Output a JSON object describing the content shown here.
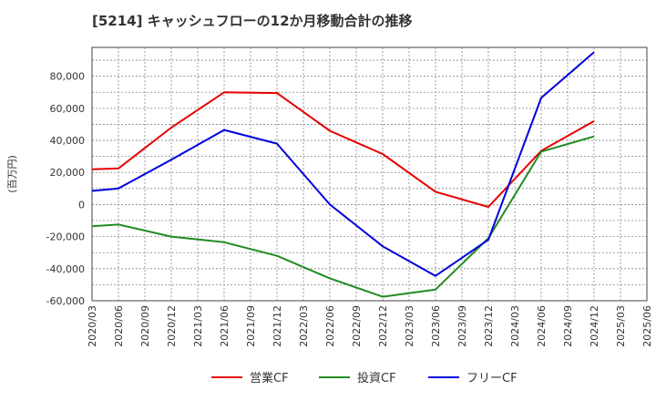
{
  "chart_data": {
    "type": "line",
    "title": "[5214]  キャッシュフローの12か月移動合計の推移",
    "ylabel": "(百万円)",
    "xlabel": "",
    "ylim": [
      -60000,
      98000
    ],
    "yticks": [
      80000,
      60000,
      40000,
      20000,
      0,
      -20000,
      -40000,
      -60000
    ],
    "ytick_labels": [
      "80,000",
      "60,000",
      "40,000",
      "20,000",
      "0",
      "-20,000",
      "-40,000",
      "-60,000"
    ],
    "x_tick_labels": [
      "2020/03",
      "2020/06",
      "2020/09",
      "2020/12",
      "2021/03",
      "2021/06",
      "2021/09",
      "2021/12",
      "2022/03",
      "2022/06",
      "2022/09",
      "2022/12",
      "2023/03",
      "2023/06",
      "2023/09",
      "2023/12",
      "2024/03",
      "2024/06",
      "2024/09",
      "2024/12",
      "2025/03",
      "2025/06"
    ],
    "grid": true,
    "legend_position": "bottom",
    "series": [
      {
        "name": "営業CF",
        "color": "#e60000",
        "points": [
          [
            0,
            22000
          ],
          [
            1,
            22500
          ],
          [
            3,
            48000
          ],
          [
            5,
            70000
          ],
          [
            7,
            69500
          ],
          [
            9,
            46000
          ],
          [
            11,
            31500
          ],
          [
            13,
            8000
          ],
          [
            15,
            -1500
          ],
          [
            17,
            33500
          ],
          [
            19,
            52000
          ]
        ]
      },
      {
        "name": "投資CF",
        "color": "#228b22",
        "points": [
          [
            0,
            -13500
          ],
          [
            1,
            -12500
          ],
          [
            3,
            -20000
          ],
          [
            5,
            -23500
          ],
          [
            7,
            -32000
          ],
          [
            9,
            -46000
          ],
          [
            11,
            -57500
          ],
          [
            13,
            -53000
          ],
          [
            15,
            -21000
          ],
          [
            17,
            33000
          ],
          [
            19,
            42500
          ]
        ]
      },
      {
        "name": "フリーCF",
        "color": "#0000dd",
        "points": [
          [
            0,
            8500
          ],
          [
            1,
            10000
          ],
          [
            3,
            28000
          ],
          [
            5,
            46500
          ],
          [
            7,
            38000
          ],
          [
            9,
            0
          ],
          [
            11,
            -26000
          ],
          [
            13,
            -44500
          ],
          [
            15,
            -22000
          ],
          [
            17,
            66500
          ],
          [
            19,
            95000
          ]
        ]
      }
    ]
  }
}
